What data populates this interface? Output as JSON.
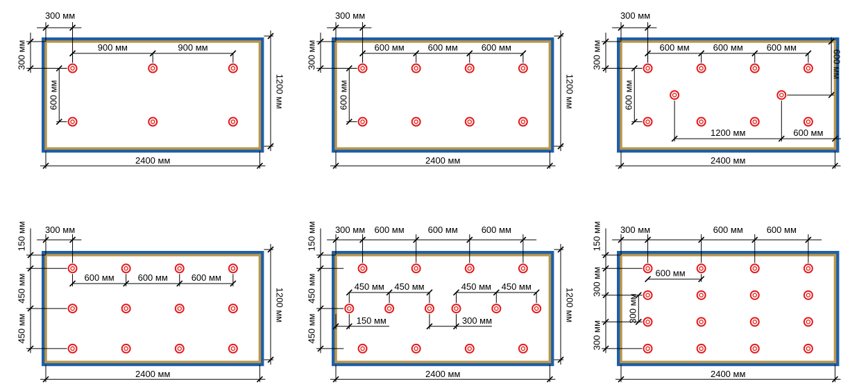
{
  "colors": {
    "board_shadow": "#1f5fa8",
    "board_border": "#b8964a",
    "board_fill": "#ffffff",
    "screw": "#e31b1b",
    "line": "#000000"
  },
  "icons": {
    "screw": "screw-target-icon"
  },
  "panels": [
    {
      "id": "panel-1",
      "labels": {
        "offset_x": "300 мм",
        "offset_y": "300 мм",
        "spacing_x_1": "900 мм",
        "spacing_x_2": "900 мм",
        "spacing_y": "600 мм",
        "height": "1200 мм",
        "width": "2400 мм"
      },
      "screws": [
        [
          300,
          300
        ],
        [
          1200,
          300
        ],
        [
          2100,
          300
        ],
        [
          300,
          900
        ],
        [
          1200,
          900
        ],
        [
          2100,
          900
        ]
      ]
    },
    {
      "id": "panel-2",
      "labels": {
        "offset_x": "300 мм",
        "offset_y": "300 мм",
        "spacing_x_1": "600 мм",
        "spacing_x_2": "600 мм",
        "spacing_x_3": "600 мм",
        "spacing_y": "600 мм",
        "height": "1200 мм",
        "width": "2400 мм"
      },
      "screws": [
        [
          300,
          300
        ],
        [
          900,
          300
        ],
        [
          1500,
          300
        ],
        [
          2100,
          300
        ],
        [
          300,
          900
        ],
        [
          900,
          900
        ],
        [
          1500,
          900
        ],
        [
          2100,
          900
        ]
      ]
    },
    {
      "id": "panel-3",
      "labels": {
        "offset_x": "300 мм",
        "offset_y": "300 мм",
        "spacing_x_1": "600 мм",
        "spacing_x_2": "600 мм",
        "spacing_x_3": "600 мм",
        "spacing_y": "600 мм",
        "right_vertical": "600 мм",
        "mid_span": "1200 мм",
        "mid_right": "600 мм",
        "width": "2400 мм"
      },
      "screws": [
        [
          300,
          300
        ],
        [
          900,
          300
        ],
        [
          1500,
          300
        ],
        [
          2100,
          300
        ],
        [
          600,
          600
        ],
        [
          1800,
          600
        ],
        [
          300,
          900
        ],
        [
          900,
          900
        ],
        [
          1500,
          900
        ],
        [
          2100,
          900
        ]
      ]
    },
    {
      "id": "panel-4",
      "labels": {
        "top_offset": "150 мм",
        "offset_x": "300 мм",
        "spacing_x_1": "600 мм",
        "spacing_x_2": "600 мм",
        "spacing_x_3": "600 мм",
        "spacing_y_1": "450 мм",
        "spacing_y_2": "450 мм",
        "height": "1200 мм",
        "width": "2400 мм"
      },
      "screws": [
        [
          300,
          150
        ],
        [
          900,
          150
        ],
        [
          1500,
          150
        ],
        [
          2100,
          150
        ],
        [
          300,
          600
        ],
        [
          900,
          600
        ],
        [
          1500,
          600
        ],
        [
          2100,
          600
        ],
        [
          300,
          1050
        ],
        [
          900,
          1050
        ],
        [
          1500,
          1050
        ],
        [
          2100,
          1050
        ]
      ]
    },
    {
      "id": "panel-5",
      "labels": {
        "top_offset": "150 мм",
        "offset_x": "300 мм",
        "top_spacing_1": "600 мм",
        "top_spacing_2": "600 мм",
        "top_spacing_3": "600 мм",
        "mid_left_1": "450 мм",
        "mid_left_2": "450 мм",
        "mid_right_1": "450 мм",
        "mid_right_2": "450 мм",
        "edge_offset": "150 мм",
        "gap": "300 мм",
        "spacing_y_1": "450 мм",
        "spacing_y_2": "450 мм",
        "height": "1200 мм",
        "width": "2400 мм"
      },
      "screws": [
        [
          300,
          150
        ],
        [
          900,
          150
        ],
        [
          1500,
          150
        ],
        [
          2100,
          150
        ],
        [
          150,
          600
        ],
        [
          600,
          600
        ],
        [
          1050,
          600
        ],
        [
          1350,
          600
        ],
        [
          1800,
          600
        ],
        [
          2250,
          600
        ],
        [
          300,
          1050
        ],
        [
          900,
          1050
        ],
        [
          1500,
          1050
        ],
        [
          2100,
          1050
        ]
      ]
    },
    {
      "id": "panel-6",
      "labels": {
        "top_offset": "150 мм",
        "offset_x": "300 мм",
        "top_spacing_1": "600 мм",
        "top_spacing_2": "600 мм",
        "row_spacing": "600 мм",
        "spacing_y_1": "300 мм",
        "spacing_y_inner": "300 мм",
        "spacing_y_2": "300 мм",
        "width": "2400 мм"
      },
      "screws": [
        [
          300,
          150
        ],
        [
          900,
          150
        ],
        [
          1500,
          150
        ],
        [
          2100,
          150
        ],
        [
          300,
          450
        ],
        [
          900,
          450
        ],
        [
          1500,
          450
        ],
        [
          2100,
          450
        ],
        [
          300,
          750
        ],
        [
          900,
          750
        ],
        [
          1500,
          750
        ],
        [
          2100,
          750
        ],
        [
          300,
          1050
        ],
        [
          900,
          1050
        ],
        [
          1500,
          1050
        ],
        [
          2100,
          1050
        ]
      ]
    }
  ]
}
